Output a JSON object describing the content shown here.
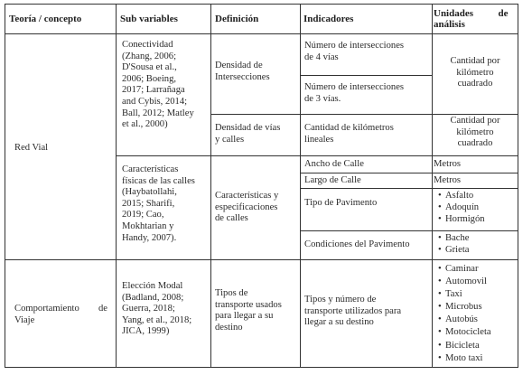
{
  "headers": {
    "teoria": "Teoría / concepto",
    "sub_variables": "Sub variables",
    "definicion": "Definición",
    "indicadores": "Indicadores",
    "unidades_line1": "Unidades          de",
    "unidades_line2": "análisis"
  },
  "red_vial": {
    "teoria": "Red Vial",
    "conectividad": {
      "sub": "Conectividad\n(Zhang, 2006;\nD'Sousa et al.,\n2006; Boeing,\n2017; Larrañaga\nand Cybis, 2014;\nBall, 2012; Matley\net al., 2000)",
      "def1": "Densidad de\nIntersecciones",
      "ind1": "Número de intersecciones\nde 4 vías",
      "ind2": "Número de intersecciones\nde 3 vías.",
      "unit1": "Cantidad por\nkilómetro\ncuadrado",
      "def2": "Densidad de vías\ny calles",
      "ind3": "Cantidad de kilómetros\nlineales",
      "unit2": "Cantidad por\nkilómetro\ncuadrado"
    },
    "caracteristicas": {
      "sub": "Características\nfísicas de las calles\n(Haybatollahi,\n2015; Sharifi,\n2019; Cao,\nMokhtarian y\nHandy, 2007).",
      "def": "Características y\nespecificaciones\nde calles",
      "ind_ancho": "Ancho de Calle",
      "unit_ancho": "Metros",
      "ind_largo": "Largo de Calle",
      "unit_largo": "Metros",
      "ind_pavimento": "Tipo de Pavimento",
      "pavimento_items": [
        "Asfalto",
        "Adoquín",
        "Hormigón"
      ],
      "ind_condiciones": "Condiciones del Pavimento",
      "condiciones_items": [
        "Bache",
        "Grieta"
      ]
    }
  },
  "comportamiento": {
    "teoria_line1": "Comportamiento        de",
    "teoria_line2": "Viaje",
    "sub": "Elección Modal\n(Badland, 2008;\nGuerra, 2018;\nYang, et al., 2018;\nJICA, 1999)",
    "def": "Tipos de\ntransporte usados\npara llegar a su\ndestino",
    "ind": "Tipos y número de\ntransporte utilizados para\nllegar a su destino",
    "modos": [
      "Caminar",
      "Automovil",
      "Taxi",
      "Microbus",
      "Autobús",
      "Motocicleta",
      "Bicicleta",
      "Moto taxi"
    ]
  }
}
